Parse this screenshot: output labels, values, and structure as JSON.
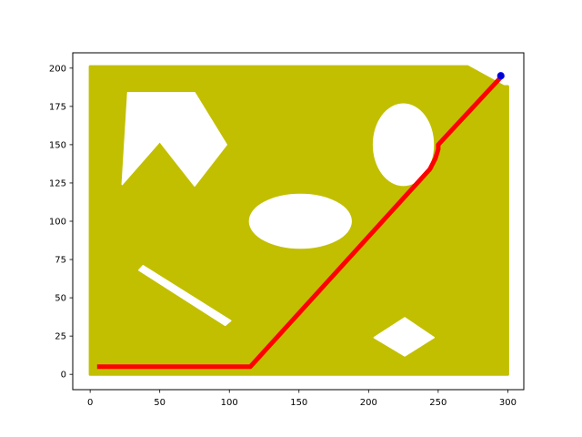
{
  "chart_data": {
    "type": "scatter",
    "title": "",
    "xlabel": "",
    "ylabel": "",
    "xlim": [
      -12.5,
      311.5
    ],
    "ylim": [
      -10,
      210
    ],
    "grid": false,
    "legend": "none",
    "x_ticks": [
      0,
      50,
      100,
      150,
      200,
      250,
      300
    ],
    "y_ticks": [
      0,
      25,
      50,
      75,
      100,
      125,
      150,
      175,
      200
    ],
    "colors": {
      "free_space": "#c2bf00",
      "path": "#ff0000",
      "goal_fill": "#0000cc",
      "goal_edge": "#0000ff",
      "axes": "#000000"
    },
    "free_space_region": [
      [
        0,
        0
      ],
      [
        0,
        201
      ],
      [
        271,
        201
      ],
      [
        297,
        188
      ],
      [
        300,
        188
      ],
      [
        300,
        0
      ]
    ],
    "obstacles": [
      {
        "name": "pentagon-obstacle",
        "shape": "polygon",
        "points": [
          [
            27,
            184
          ],
          [
            75,
            184
          ],
          [
            98,
            150
          ],
          [
            75,
            123
          ],
          [
            50,
            152
          ],
          [
            23,
            124
          ]
        ]
      },
      {
        "name": "oval-left-obstacle",
        "shape": "ellipse",
        "center": [
          151,
          100
        ],
        "radii": [
          37,
          18
        ]
      },
      {
        "name": "circle-right-obstacle",
        "shape": "ellipse",
        "center": [
          225,
          150
        ],
        "radii": [
          22,
          27
        ]
      },
      {
        "name": "bar-obstacle",
        "shape": "polygon",
        "points": [
          [
            35,
            68
          ],
          [
            38,
            71
          ],
          [
            101,
            35
          ],
          [
            97,
            32
          ]
        ]
      },
      {
        "name": "diamond-obstacle",
        "shape": "polygon",
        "points": [
          [
            204,
            24
          ],
          [
            226,
            37
          ],
          [
            247,
            24
          ],
          [
            226,
            12
          ]
        ]
      }
    ],
    "path": [
      [
        5,
        5
      ],
      [
        115,
        5
      ],
      [
        244,
        134
      ],
      [
        248,
        141
      ],
      [
        250,
        147
      ],
      [
        250,
        150
      ],
      [
        295,
        194
      ]
    ],
    "goal": [
      295,
      195
    ]
  }
}
